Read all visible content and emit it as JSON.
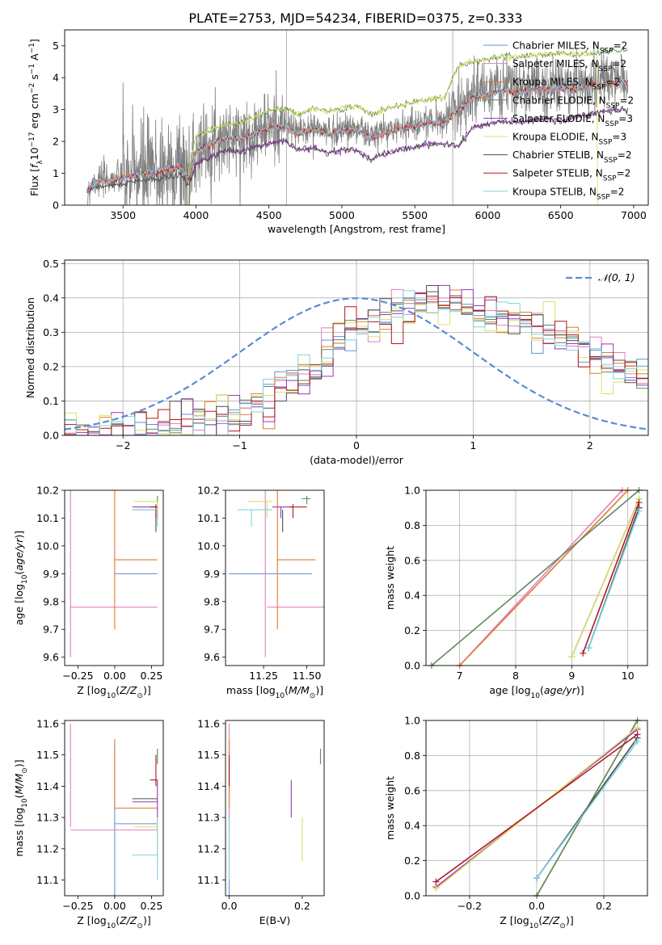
{
  "colors": {
    "Chabrier MILES": "#6a8fd0",
    "Salpeter MILES": "#e27fc0",
    "Kroupa MILES": "#e07b2e",
    "Chabrier ELODIE": "#5f8a5e",
    "Salpeter ELODIE": "#9a35b8",
    "Kroupa ELODIE": "#d9e36a",
    "Chabrier STELIB": "#4d4d4d",
    "Salpeter STELIB": "#b0191f",
    "Kroupa STELIB": "#7fd3dc",
    "data": "#808080",
    "gaussian": "#5b8bd8"
  },
  "chart_data": [
    {
      "type": "line",
      "title": "PLATE=2753, MJD=54234, FIBERID=0375, z=0.333",
      "xlabel": "wavelength [Angstrom, rest frame]",
      "ylabel": "Flux [f_λ 10^-17 erg cm^-2 s^-1 A^-1]",
      "xlim": [
        3100,
        7100
      ],
      "ylim": [
        0,
        5.5
      ],
      "xticks": [
        3500,
        4000,
        4500,
        5000,
        5500,
        6000,
        6500,
        7000
      ],
      "yticks": [
        0,
        1,
        2,
        3,
        4,
        5
      ],
      "legend_position": "top-right",
      "legend": [
        {
          "base": "Chabrier MILES, N",
          "sub": "SSP",
          "tail": "=2"
        },
        {
          "base": "Salpeter MILES, N",
          "sub": "SSP",
          "tail": "=2"
        },
        {
          "base": "Kroupa MILES, N",
          "sub": "SSP",
          "tail": "=2"
        },
        {
          "base": "Chabrier ELODIE, N",
          "sub": "SSP",
          "tail": "=2"
        },
        {
          "base": "Salpeter ELODIE, N",
          "sub": "SSP",
          "tail": "=3"
        },
        {
          "base": "Kroupa ELODIE, N",
          "sub": "SSP",
          "tail": "=3"
        },
        {
          "base": "Chabrier STELIB, N",
          "sub": "SSP",
          "tail": "=2"
        },
        {
          "base": "Salpeter STELIB, N",
          "sub": "SSP",
          "tail": "=2"
        },
        {
          "base": "Kroupa STELIB, N",
          "sub": "SSP",
          "tail": "=2"
        }
      ],
      "continuum_lower": [
        [
          3250,
          0.4
        ],
        [
          3300,
          0.55
        ],
        [
          3400,
          0.6
        ],
        [
          3500,
          0.65
        ],
        [
          3600,
          0.75
        ],
        [
          3700,
          0.8
        ],
        [
          3800,
          0.85
        ],
        [
          3900,
          0.95
        ],
        [
          3950,
          0.6
        ],
        [
          4000,
          1.3
        ],
        [
          4100,
          1.5
        ],
        [
          4200,
          1.7
        ],
        [
          4300,
          1.65
        ],
        [
          4400,
          1.8
        ],
        [
          4500,
          1.9
        ],
        [
          4600,
          2.0
        ],
        [
          4700,
          1.7
        ],
        [
          4800,
          1.8
        ],
        [
          4900,
          1.6
        ],
        [
          5000,
          1.7
        ],
        [
          5100,
          1.7
        ],
        [
          5200,
          1.4
        ],
        [
          5300,
          1.6
        ],
        [
          5400,
          1.7
        ],
        [
          5500,
          1.8
        ],
        [
          5600,
          1.9
        ],
        [
          5700,
          1.9
        ],
        [
          5800,
          1.8
        ],
        [
          5900,
          2.4
        ],
        [
          6000,
          2.5
        ],
        [
          6100,
          2.6
        ],
        [
          6200,
          2.55
        ],
        [
          6300,
          2.6
        ],
        [
          6400,
          2.7
        ],
        [
          6500,
          2.6
        ],
        [
          6600,
          2.7
        ],
        [
          6700,
          2.8
        ],
        [
          6800,
          2.9
        ],
        [
          6900,
          2.95
        ]
      ],
      "continuum_upper": [
        [
          3250,
          0.45
        ],
        [
          3300,
          0.95
        ],
        [
          3400,
          1.0
        ],
        [
          3500,
          1.1
        ],
        [
          3600,
          1.2
        ],
        [
          3700,
          1.3
        ],
        [
          3800,
          1.45
        ],
        [
          3900,
          1.5
        ],
        [
          3950,
          1.1
        ],
        [
          4000,
          2.2
        ],
        [
          4100,
          2.4
        ],
        [
          4200,
          2.6
        ],
        [
          4300,
          2.6
        ],
        [
          4400,
          2.8
        ],
        [
          4500,
          3.0
        ],
        [
          4600,
          3.1
        ],
        [
          4700,
          2.9
        ],
        [
          4800,
          3.1
        ],
        [
          4900,
          3.0
        ],
        [
          5000,
          3.1
        ],
        [
          5100,
          3.2
        ],
        [
          5200,
          2.9
        ],
        [
          5300,
          3.1
        ],
        [
          5400,
          3.2
        ],
        [
          5500,
          3.3
        ],
        [
          5600,
          3.4
        ],
        [
          5700,
          3.4
        ],
        [
          5800,
          4.5
        ],
        [
          5900,
          4.6
        ],
        [
          6000,
          4.7
        ],
        [
          6100,
          4.8
        ],
        [
          6200,
          4.75
        ],
        [
          6300,
          4.8
        ],
        [
          6400,
          4.85
        ],
        [
          6500,
          4.9
        ],
        [
          6600,
          4.8
        ],
        [
          6700,
          4.85
        ],
        [
          6800,
          4.9
        ],
        [
          6900,
          4.95
        ]
      ]
    },
    {
      "type": "line",
      "xlabel": "(data-model)/error",
      "ylabel": "Normed distribution",
      "xlim": [
        -2.5,
        2.5
      ],
      "ylim": [
        0,
        0.51
      ],
      "xticks": [
        -2,
        -1,
        0,
        1,
        2
      ],
      "yticks": [
        0.0,
        0.1,
        0.2,
        0.3,
        0.4,
        0.5
      ],
      "legend_position": "top-right",
      "legend_label": "𝒩(0, 1)",
      "gaussian": {
        "mean": 0,
        "sigma": 1
      },
      "bin_width": 0.1,
      "histogram_profile": [
        [
          -2.5,
          0.0
        ],
        [
          -2.0,
          0.01
        ],
        [
          -1.5,
          0.03
        ],
        [
          -1.0,
          0.07
        ],
        [
          -0.5,
          0.16
        ],
        [
          0.0,
          0.3
        ],
        [
          0.3,
          0.35
        ],
        [
          0.5,
          0.38
        ],
        [
          0.7,
          0.4
        ],
        [
          1.0,
          0.36
        ],
        [
          1.5,
          0.33
        ],
        [
          2.0,
          0.24
        ],
        [
          2.5,
          0.16
        ]
      ]
    },
    {
      "type": "scatter",
      "xlabel": "Z [log10(Z/Z⊙)]",
      "ylabel": "age [log10(age/yr)]",
      "xlim": [
        -0.34,
        0.33
      ],
      "ylim": [
        9.57,
        10.2
      ],
      "xticks": [
        -0.25,
        0.0,
        0.25
      ],
      "yticks": [
        9.6,
        9.7,
        9.8,
        9.9,
        10.0,
        10.1,
        10.2
      ]
    },
    {
      "type": "scatter",
      "xlabel": "mass [log10(M/M⊙)]",
      "ylabel": "",
      "xlim": [
        11.03,
        11.6
      ],
      "ylim": [
        9.57,
        10.2
      ],
      "xticks": [
        11.25,
        11.5
      ],
      "yticks": [
        9.6,
        9.7,
        9.8,
        9.9,
        10.0,
        10.1,
        10.2
      ]
    },
    {
      "type": "line",
      "xlabel": "age [log10(age/yr)]",
      "ylabel": "mass weight",
      "xlim": [
        6.4,
        10.35
      ],
      "ylim": [
        0,
        1
      ],
      "xticks": [
        7,
        8,
        9,
        10
      ],
      "yticks": [
        0.0,
        0.2,
        0.4,
        0.6,
        0.8,
        1.0
      ]
    },
    {
      "type": "scatter",
      "xlabel": "Z [log10(Z/Z⊙)]",
      "ylabel": "mass [log10(M/M⊙)]",
      "xlim": [
        -0.34,
        0.33
      ],
      "ylim": [
        11.05,
        11.61
      ],
      "xticks": [
        -0.25,
        0.0,
        0.25
      ],
      "yticks": [
        11.1,
        11.2,
        11.3,
        11.4,
        11.5,
        11.6
      ]
    },
    {
      "type": "scatter",
      "xlabel": "E(B-V)",
      "ylabel": "",
      "xlim": [
        -0.01,
        0.26
      ],
      "ylim": [
        11.05,
        11.61
      ],
      "xticks": [
        0.0,
        0.2
      ],
      "yticks": [
        11.1,
        11.2,
        11.3,
        11.4,
        11.5,
        11.6
      ]
    },
    {
      "type": "line",
      "xlabel": "Z [log10(Z/Z⊙)]",
      "ylabel": "mass weight",
      "xlim": [
        -0.33,
        0.33
      ],
      "ylim": [
        0,
        1
      ],
      "xticks": [
        -0.2,
        0.0,
        0.2
      ],
      "yticks": [
        0.0,
        0.2,
        0.4,
        0.6,
        0.8,
        1.0
      ]
    }
  ],
  "fits": [
    {
      "key": "Chabrier MILES",
      "Z": 0.0,
      "Zlo": 0.0,
      "Zhi": 0.29,
      "age": 9.9,
      "agelo": 9.9,
      "agehi": 9.9,
      "mass": 11.28,
      "masslo": 11.05,
      "masshi": 11.53,
      "ebv": 0.0,
      "weights": [
        [
          9.3,
          0.1
        ],
        [
          10.2,
          0.9
        ]
      ],
      "Zweights": [
        [
          0.0,
          0.1
        ],
        [
          0.3,
          0.9
        ]
      ]
    },
    {
      "key": "Salpeter MILES",
      "Z": -0.3,
      "Zlo": -0.3,
      "Zhi": 0.29,
      "age": 9.78,
      "agelo": 9.6,
      "agehi": 10.2,
      "mass": 11.26,
      "masslo": 11.27,
      "masshi": 11.6,
      "ebv": 0.0,
      "weights": [
        [
          7.0,
          0.0
        ],
        [
          9.9,
          1.0
        ]
      ],
      "Zweights": [
        [
          -0.3,
          0.05
        ],
        [
          0.3,
          0.95
        ]
      ]
    },
    {
      "key": "Kroupa MILES",
      "Z": 0.0,
      "Zlo": 0.0,
      "Zhi": 0.29,
      "age": 9.95,
      "agelo": 9.7,
      "agehi": 10.2,
      "mass": 11.33,
      "masslo": 11.33,
      "masshi": 11.55,
      "ebv": 0.0,
      "weights": [
        [
          7.0,
          0.0
        ],
        [
          10.0,
          1.0
        ]
      ],
      "Zweights": [
        [
          0.0,
          0.0
        ],
        [
          0.3,
          1.0
        ]
      ]
    },
    {
      "key": "Chabrier ELODIE",
      "Z": 0.29,
      "Zlo": 0.29,
      "Zhi": 0.29,
      "age": 10.17,
      "agelo": 10.15,
      "agehi": 10.18,
      "mass": 11.5,
      "masslo": 11.47,
      "masshi": 11.52,
      "ebv": 0.25,
      "weights": [
        [
          6.5,
          0.0
        ],
        [
          10.2,
          1.0
        ]
      ],
      "Zweights": [
        [
          0.0,
          0.0
        ],
        [
          0.3,
          1.0
        ]
      ]
    },
    {
      "key": "Salpeter ELODIE",
      "Z": 0.29,
      "Zlo": 0.12,
      "Zhi": 0.29,
      "age": 10.14,
      "agelo": 10.1,
      "agehi": 10.14,
      "mass": 11.35,
      "masslo": 11.3,
      "masshi": 11.42,
      "ebv": 0.17,
      "weights": [
        [
          9.0,
          0.05
        ],
        [
          10.2,
          0.95
        ]
      ],
      "Zweights": [
        [
          -0.3,
          0.05
        ],
        [
          0.3,
          0.95
        ]
      ]
    },
    {
      "key": "Kroupa ELODIE",
      "Z": 0.29,
      "Zlo": 0.13,
      "Zhi": 0.29,
      "age": 10.16,
      "agelo": 10.1,
      "agehi": 10.16,
      "mass": 11.27,
      "masslo": 11.16,
      "masshi": 11.3,
      "ebv": 0.2,
      "weights": [
        [
          9.0,
          0.05
        ],
        [
          10.2,
          0.95
        ]
      ],
      "Zweights": [
        [
          -0.3,
          0.04
        ],
        [
          0.3,
          0.96
        ]
      ]
    },
    {
      "key": "Chabrier STELIB",
      "Z": 0.28,
      "Zlo": 0.12,
      "Zhi": 0.29,
      "age": 10.13,
      "agelo": 10.05,
      "agehi": 10.13,
      "mass": 11.36,
      "masslo": 11.36,
      "masshi": 11.36,
      "ebv": 0.0,
      "weights": [
        [
          9.3,
          0.1
        ],
        [
          10.2,
          0.9
        ]
      ],
      "Zweights": [
        [
          0.0,
          0.1
        ],
        [
          0.3,
          0.9
        ]
      ]
    },
    {
      "key": "Salpeter STELIB",
      "Z": 0.28,
      "Zlo": 0.24,
      "Zhi": 0.29,
      "age": 10.14,
      "agelo": 10.1,
      "agehi": 10.15,
      "mass": 11.42,
      "masslo": 11.4,
      "masshi": 11.5,
      "ebv": 0.0,
      "weights": [
        [
          9.2,
          0.07
        ],
        [
          10.2,
          0.93
        ]
      ],
      "Zweights": [
        [
          -0.3,
          0.08
        ],
        [
          0.3,
          0.92
        ]
      ]
    },
    {
      "key": "Kroupa STELIB",
      "Z": 0.29,
      "Zlo": 0.12,
      "Zhi": 0.29,
      "age": 10.13,
      "agelo": 10.07,
      "agehi": 10.13,
      "mass": 11.18,
      "masslo": 11.1,
      "masshi": 11.3,
      "ebv": 0.0,
      "weights": [
        [
          9.3,
          0.1
        ],
        [
          10.2,
          0.88
        ]
      ],
      "Zweights": [
        [
          0.0,
          0.1
        ],
        [
          0.3,
          0.88
        ]
      ]
    }
  ]
}
